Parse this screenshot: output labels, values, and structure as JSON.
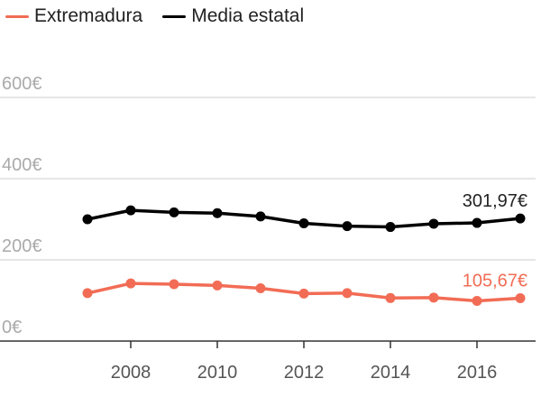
{
  "chart_data": {
    "type": "line",
    "x": [
      2007,
      2008,
      2009,
      2010,
      2011,
      2012,
      2013,
      2014,
      2015,
      2016,
      2017
    ],
    "series": [
      {
        "name": "Extremadura",
        "color": "#f26c55",
        "values": [
          118,
          142,
          140,
          137,
          130,
          117,
          118,
          106,
          107,
          99,
          105.67
        ],
        "end_label": "105,67€"
      },
      {
        "name": "Media estatal",
        "color": "#000000",
        "values": [
          300,
          322,
          317,
          315,
          307,
          290,
          283,
          281,
          289,
          291,
          301.97
        ],
        "end_label": "301,97€"
      }
    ],
    "y_ticks": [
      {
        "value": 0,
        "label": "0€"
      },
      {
        "value": 200,
        "label": "200€"
      },
      {
        "value": 400,
        "label": "400€"
      },
      {
        "value": 600,
        "label": "600€"
      }
    ],
    "x_ticks": [
      {
        "value": 2008,
        "label": "2008"
      },
      {
        "value": 2010,
        "label": "2010"
      },
      {
        "value": 2012,
        "label": "2012"
      },
      {
        "value": 2014,
        "label": "2014"
      },
      {
        "value": 2016,
        "label": "2016"
      }
    ],
    "ylim": [
      0,
      600
    ],
    "xlim": [
      2007,
      2017
    ],
    "grid": true,
    "legend_position": "top-left"
  }
}
